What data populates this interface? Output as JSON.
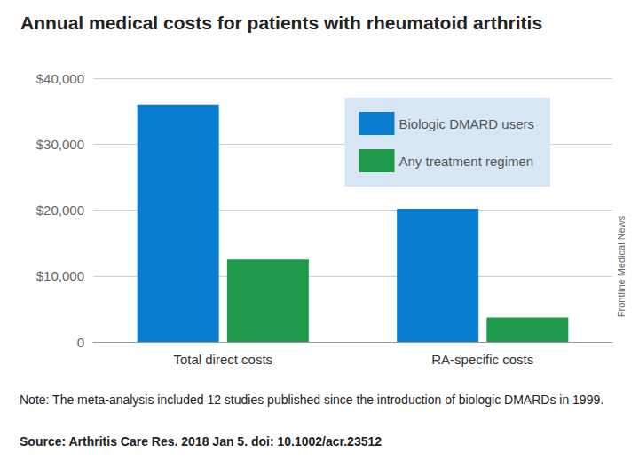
{
  "chart_data": {
    "type": "bar",
    "title": "Annual medical costs for patients with rheumatoid arthritis",
    "categories": [
      "Total direct costs",
      "RA-specific costs"
    ],
    "series": [
      {
        "name": "Biologic DMARD users",
        "color": "#0b7dd1",
        "values": [
          36000,
          20200
        ]
      },
      {
        "name": "Any treatment regimen",
        "color": "#1f9a4a",
        "values": [
          12500,
          3700
        ]
      }
    ],
    "ylim": [
      0,
      40000
    ],
    "yticks": [
      0,
      {
        "value": 10000,
        "label": "$10,000"
      },
      {
        "value": 20000,
        "label": "$20,000"
      },
      {
        "value": 30000,
        "label": "$30,000"
      },
      {
        "value": 40000,
        "label": "$40,000"
      }
    ],
    "grid": true,
    "legend": "upper right",
    "note": "Note: The meta-analysis included 12 studies published since the introduction of biologic DMARDs in 1999.",
    "source": "Source: Arthritis Care Res. 2018 Jan 5. doi: 10.1002/acr.23512",
    "credit": "Frontline Medical News"
  }
}
